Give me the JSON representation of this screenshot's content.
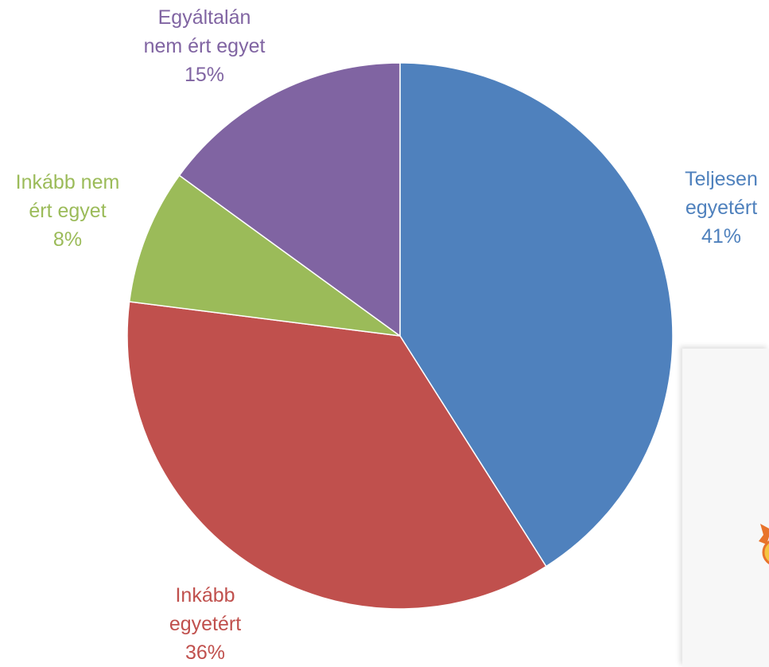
{
  "chart_data": {
    "type": "pie",
    "start_angle": "top-clockwise",
    "slices": [
      {
        "label_lines": [
          "Teljesen",
          "egyetért"
        ],
        "value": 41,
        "value_label": "41%",
        "color": "#4F81BD"
      },
      {
        "label_lines": [
          "Inkább",
          "egyetért"
        ],
        "value": 36,
        "value_label": "36%",
        "color": "#C0504D"
      },
      {
        "label_lines": [
          "Inkább nem",
          "ért egyet"
        ],
        "value": 8,
        "value_label": "8%",
        "color": "#9BBB59"
      },
      {
        "label_lines": [
          "Egyáltalán",
          "nem ért egyet"
        ],
        "value": 15,
        "value_label": "15%",
        "color": "#8064A2"
      }
    ]
  },
  "decoration": {
    "icon": "cartoon-sun-figure-icon",
    "ray_color": "#E8732B",
    "face_color": "#F5C542"
  }
}
